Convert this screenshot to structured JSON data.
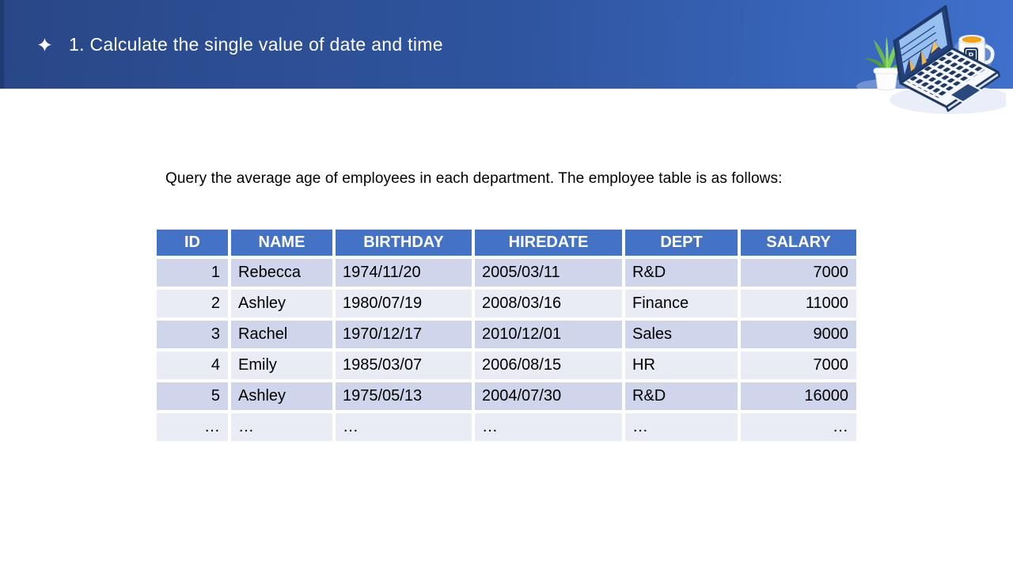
{
  "slide": {
    "title": "1. Calculate the single value of date and time",
    "body_text": "Query the average age of employees in each department. The employee table is as follows:"
  },
  "icons": {
    "title_bullet": "four-point-sparkle",
    "illustration_parts": [
      "potted-plant",
      "laptop-with-area-chart",
      "coffee-mug-with-p-logo"
    ],
    "mug_logo_letter": "P"
  },
  "table": {
    "columns": [
      {
        "label": "ID",
        "align": "right"
      },
      {
        "label": "NAME",
        "align": "left"
      },
      {
        "label": "BIRTHDAY",
        "align": "left"
      },
      {
        "label": "HIREDATE",
        "align": "left"
      },
      {
        "label": "DEPT",
        "align": "left"
      },
      {
        "label": "SALARY",
        "align": "right"
      }
    ],
    "rows": [
      [
        "1",
        "Rebecca",
        "1974/11/20",
        "2005/03/11",
        "R&D",
        "7000"
      ],
      [
        "2",
        "Ashley",
        "1980/07/19",
        "2008/03/16",
        "Finance",
        "11000"
      ],
      [
        "3",
        "Rachel",
        "1970/12/17",
        "2010/12/01",
        "Sales",
        "9000"
      ],
      [
        "4",
        "Emily",
        "1985/03/07",
        "2006/08/15",
        "HR",
        "7000"
      ],
      [
        "5",
        "Ashley",
        "1975/05/13",
        "2004/07/30",
        "R&D",
        "16000"
      ],
      [
        "…",
        "…",
        "…",
        "…",
        "…",
        "…"
      ]
    ]
  },
  "colors": {
    "band_gradient_left": "#294787",
    "band_gradient_right": "#3e70cc",
    "title_text": "#ffffff",
    "body_text": "#000000",
    "table_header_bg": "#4472c4",
    "table_header_text": "#ffffff",
    "row_dark": "#cfd5ea",
    "row_light": "#e9ebf5",
    "illustration_navy": "#1f3864",
    "illustration_yellow": "#f2b648",
    "illustration_green": "#6cbb45",
    "illustration_screen": "#97bff0",
    "mug_coffee": "#f2a212"
  }
}
